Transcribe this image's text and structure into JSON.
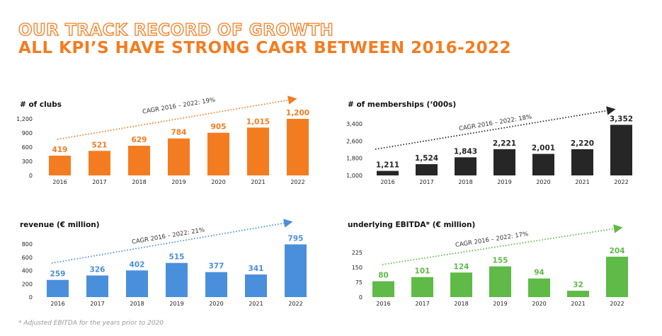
{
  "header": {
    "title_line1": "OUR TRACK RECORD OF GROWTH",
    "title_line2": "ALL KPI’S HAVE STRONG CAGR BETWEEN 2016-2022"
  },
  "footnote": "* Adjusted EBITDA for the years prior to 2020",
  "chart_data": [
    {
      "type": "bar",
      "title": "# of clubs",
      "categories": [
        "2016",
        "2017",
        "2018",
        "2019",
        "2020",
        "2021",
        "2022"
      ],
      "values": [
        419,
        521,
        629,
        784,
        905,
        1015,
        1200
      ],
      "value_labels": [
        "419",
        "521",
        "629",
        "784",
        "905",
        "1,015",
        "1,200"
      ],
      "yticks": [
        0,
        300,
        600,
        900,
        1200
      ],
      "ytick_labels": [
        "0",
        "300",
        "600",
        "900",
        "1,200"
      ],
      "ylim": [
        0,
        1200
      ],
      "annotation": "CAGR 2016 –  2022: 19%",
      "color": "#f47c20"
    },
    {
      "type": "bar",
      "title": "# of memberships (‘000s)",
      "categories": [
        "2016",
        "2017",
        "2018",
        "2019",
        "2020",
        "2021",
        "2022"
      ],
      "values": [
        1211,
        1524,
        1843,
        2221,
        2001,
        2220,
        3352
      ],
      "value_labels": [
        "1,211",
        "1,524",
        "1,843",
        "2,221",
        "2,001",
        "2,220",
        "3,352"
      ],
      "yticks": [
        1000,
        1800,
        2600,
        3400
      ],
      "ytick_labels": [
        "1,000",
        "1,800",
        "2,600",
        "3,400"
      ],
      "ylim": [
        1000,
        3400
      ],
      "annotation": "CAGR 2016 –  2022: 18%",
      "color": "#262626"
    },
    {
      "type": "bar",
      "title": "revenue (€ million)",
      "categories": [
        "2016",
        "2017",
        "2018",
        "2019",
        "2020",
        "2021",
        "2022"
      ],
      "values": [
        259,
        326,
        402,
        515,
        377,
        341,
        795
      ],
      "value_labels": [
        "259",
        "326",
        "402",
        "515",
        "377",
        "341",
        "795"
      ],
      "yticks": [
        0,
        200,
        400,
        600,
        800
      ],
      "ytick_labels": [
        "0",
        "200",
        "400",
        "600",
        "800"
      ],
      "ylim": [
        0,
        800
      ],
      "annotation": "CAGR 2016 – 2022: 21%",
      "color": "#4a8fdc"
    },
    {
      "type": "bar",
      "title": "underlying EBITDA* (€ million)",
      "categories": [
        "2016",
        "2017",
        "2018",
        "2019",
        "2020",
        "2021",
        "2022"
      ],
      "values": [
        80,
        101,
        124,
        155,
        94,
        32,
        204
      ],
      "value_labels": [
        "80",
        "101",
        "124",
        "155",
        "94",
        "32",
        "204"
      ],
      "yticks": [
        0,
        75,
        150,
        225
      ],
      "ytick_labels": [
        "0",
        "75",
        "150",
        "225"
      ],
      "ylim": [
        0,
        225
      ],
      "annotation": "CAGR 2016 – 2022: 17%",
      "color": "#5fba47"
    }
  ]
}
